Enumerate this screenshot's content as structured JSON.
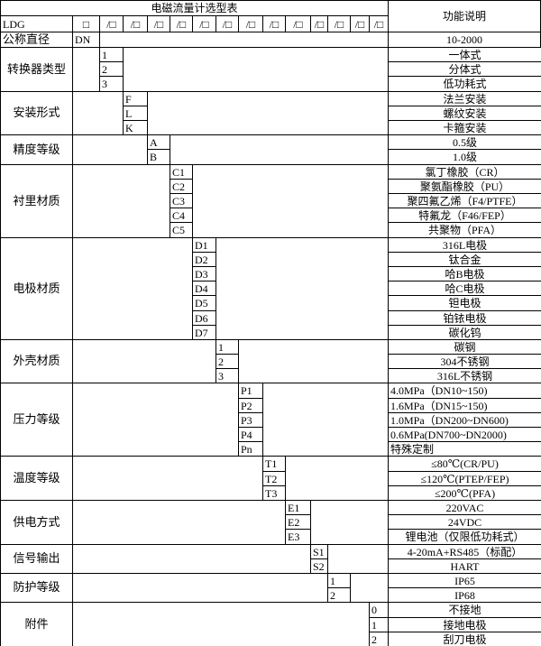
{
  "title": "电磁流量计选型表",
  "function_header": "功能说明",
  "model_row": {
    "prefix": "LDG",
    "first_box": "□",
    "slot": "/□",
    "slot_count": 13
  },
  "nominal_diameter": {
    "label": "公称直径",
    "code": "DN",
    "description": "10-2000"
  },
  "groups": [
    {
      "label": "转换器类型",
      "items": [
        {
          "code": "1",
          "description": "一体式"
        },
        {
          "code": "2",
          "description": "分体式"
        },
        {
          "code": "3",
          "description": "低功耗式"
        }
      ]
    },
    {
      "label": "安装形式",
      "items": [
        {
          "code": "F",
          "description": "法兰安装"
        },
        {
          "code": "L",
          "description": "螺纹安装"
        },
        {
          "code": "K",
          "description": "卡箍安装"
        }
      ]
    },
    {
      "label": "精度等级",
      "items": [
        {
          "code": "A",
          "description": "0.5级"
        },
        {
          "code": "B",
          "description": "1.0级"
        }
      ]
    },
    {
      "label": "衬里材质",
      "items": [
        {
          "code": "C1",
          "description": "氯丁橡胶（CR）"
        },
        {
          "code": "C2",
          "description": "聚氨酯橡胶（PU）"
        },
        {
          "code": "C3",
          "description": "聚四氟乙烯（F4/PTFE）"
        },
        {
          "code": "C4",
          "description": "特氟龙（F46/FEP）"
        },
        {
          "code": "C5",
          "description": "共聚物（PFA）"
        }
      ]
    },
    {
      "label": "电极材质",
      "items": [
        {
          "code": "D1",
          "description": "316L电极"
        },
        {
          "code": "D2",
          "description": "钛合金"
        },
        {
          "code": "D3",
          "description": "哈B电极"
        },
        {
          "code": "D4",
          "description": "哈C电极"
        },
        {
          "code": "D5",
          "description": "钽电极"
        },
        {
          "code": "D6",
          "description": "铂铱电极"
        },
        {
          "code": "D7",
          "description": "碳化钨"
        }
      ]
    },
    {
      "label": "外壳材质",
      "items": [
        {
          "code": "1",
          "description": "碳钢"
        },
        {
          "code": "2",
          "description": "304不锈钢"
        },
        {
          "code": "3",
          "description": "316L不锈钢"
        }
      ]
    },
    {
      "label": "压力等级",
      "align": "left",
      "items": [
        {
          "code": "P1",
          "description": "4.0MPa（DN10~150)"
        },
        {
          "code": "P2",
          "description": "1.6MPa（DN15~150)"
        },
        {
          "code": "P3",
          "description": "1.0MPa（DN200~DN600)"
        },
        {
          "code": "P4",
          "description": "0.6MPa(DN700~DN2000)"
        },
        {
          "code": "Pn",
          "description": "特殊定制"
        }
      ]
    },
    {
      "label": "温度等级",
      "items": [
        {
          "code": "T1",
          "description": "≤80℃(CR/PU)"
        },
        {
          "code": "T2",
          "description": "≤120℃(PTEP/FEP)"
        },
        {
          "code": "T3",
          "description": "≤200℃(PFA)"
        }
      ]
    },
    {
      "label": "供电方式",
      "items": [
        {
          "code": "E1",
          "description": "220VAC"
        },
        {
          "code": "E2",
          "description": "24VDC"
        },
        {
          "code": "E3",
          "description": "锂电池（仅限低功耗式）"
        }
      ]
    },
    {
      "label": "信号输出",
      "items": [
        {
          "code": "S1",
          "description": "4-20mA+RS485（标配）"
        },
        {
          "code": "S2",
          "description": "HART"
        }
      ]
    },
    {
      "label": "防护等级",
      "items": [
        {
          "code": "1",
          "description": "IP65"
        },
        {
          "code": "2",
          "description": "IP68"
        }
      ]
    },
    {
      "label": "附件",
      "items": [
        {
          "code": "0",
          "description": "不接地"
        },
        {
          "code": "1",
          "description": "接地电极"
        },
        {
          "code": "2",
          "description": "刮刀电极"
        }
      ]
    }
  ]
}
